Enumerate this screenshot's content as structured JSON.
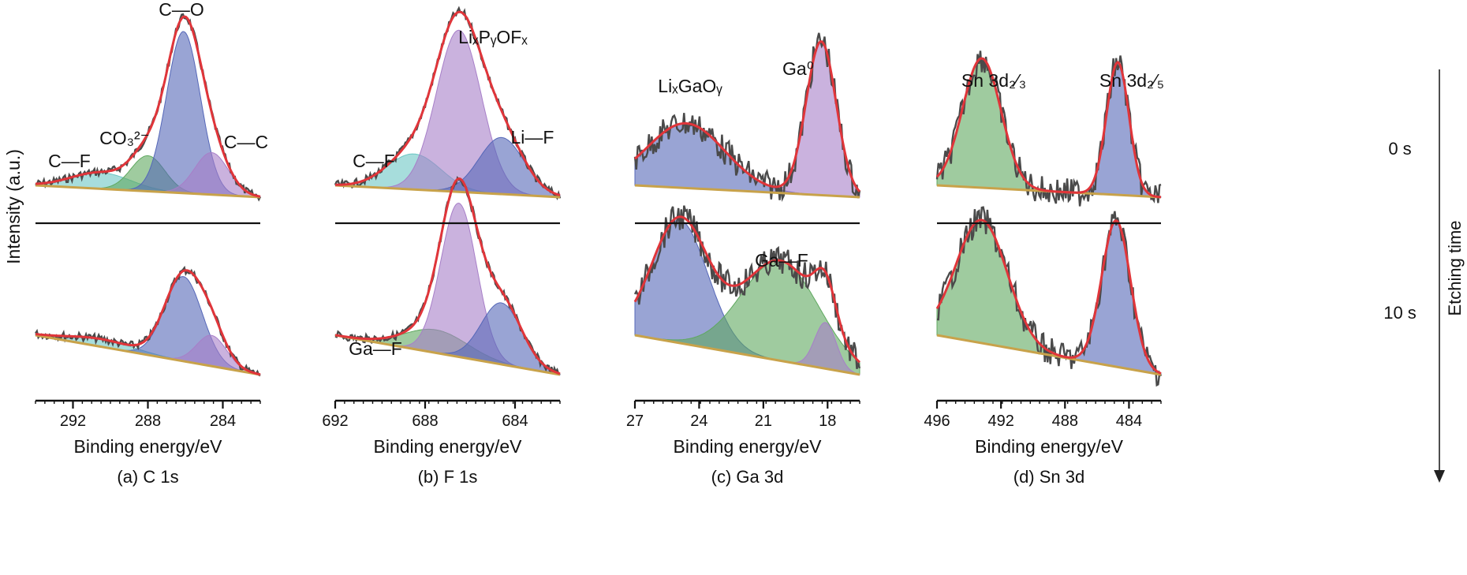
{
  "ylabel": "Intensity (a.u.)",
  "etching_label": "Etching time",
  "colors": {
    "envelope": "#e0353a",
    "raw": "#4a4a4a",
    "background": "#c8a24a",
    "blue": "#5567b8",
    "purple": "#a77fc8",
    "green": "#5fa85f",
    "cyan": "#6cc7c4",
    "separator": "#111111"
  },
  "chart_data": [
    {
      "type": "line",
      "panel": "a",
      "caption": "(a) C 1s",
      "xlabel": "Binding energy/eV",
      "xlim": [
        294,
        282
      ],
      "xticks": [
        "292",
        "288",
        "284"
      ],
      "rows": [
        {
          "time": "0 s",
          "peaks": [
            {
              "label": "C—F",
              "center": 290.5,
              "height": 0.1,
              "width": 1.6,
              "color": "cyan"
            },
            {
              "label": "CO₃²⁻",
              "center": 288.0,
              "height": 0.22,
              "width": 0.9,
              "color": "green"
            },
            {
              "label": "C—O",
              "center": 286.1,
              "height": 1.0,
              "width": 0.9,
              "color": "blue"
            },
            {
              "label": "C—C",
              "center": 284.6,
              "height": 0.26,
              "width": 0.9,
              "color": "purple"
            }
          ]
        },
        {
          "time": "10 s",
          "peaks": [
            {
              "label": "",
              "center": 290.5,
              "height": 0.05,
              "width": 1.8,
              "color": "cyan"
            },
            {
              "label": "",
              "center": 286.1,
              "height": 0.55,
              "width": 1.0,
              "color": "blue"
            },
            {
              "label": "",
              "center": 284.6,
              "height": 0.2,
              "width": 0.8,
              "color": "purple"
            }
          ]
        }
      ]
    },
    {
      "type": "line",
      "panel": "b",
      "caption": "(b) F 1s",
      "xlabel": "Binding energy/eV",
      "xlim": [
        692,
        682
      ],
      "xticks": [
        "692",
        "688",
        "684"
      ],
      "rows": [
        {
          "time": "0 s",
          "peaks": [
            {
              "label": "C—F",
              "center": 688.5,
              "height": 0.22,
              "width": 1.2,
              "color": "cyan"
            },
            {
              "label": "LiₓPᵧOFₓ",
              "center": 686.5,
              "height": 1.0,
              "width": 1.0,
              "color": "purple"
            },
            {
              "label": "Li—F",
              "center": 684.6,
              "height": 0.35,
              "width": 1.0,
              "color": "blue"
            }
          ]
        },
        {
          "time": "10 s",
          "peaks": [
            {
              "label": "Ga—F",
              "center": 687.5,
              "height": 0.15,
              "width": 1.4,
              "color": "green"
            },
            {
              "label": "",
              "center": 686.5,
              "height": 1.0,
              "width": 0.8,
              "color": "purple"
            },
            {
              "label": "",
              "center": 684.6,
              "height": 0.4,
              "width": 0.9,
              "color": "blue"
            }
          ]
        }
      ]
    },
    {
      "type": "line",
      "panel": "c",
      "caption": "(c) Ga 3d",
      "xlabel": "Binding energy/eV",
      "xlim": [
        27,
        16.5
      ],
      "xticks": [
        "27",
        "24",
        "21",
        "18"
      ],
      "rows": [
        {
          "time": "0 s",
          "peaks": [
            {
              "label": "LiₓGaOᵧ",
              "center": 24.6,
              "height": 0.4,
              "width": 1.8,
              "color": "blue"
            },
            {
              "label": "Ga⁰",
              "center": 18.3,
              "height": 0.95,
              "width": 0.7,
              "color": "purple"
            }
          ]
        },
        {
          "time": "10 s",
          "peaks": [
            {
              "label": "",
              "center": 24.9,
              "height": 0.8,
              "width": 1.3,
              "color": "blue"
            },
            {
              "label": "Ga—F",
              "center": 20.2,
              "height": 0.65,
              "width": 1.8,
              "color": "green"
            },
            {
              "label": "",
              "center": 18.1,
              "height": 0.3,
              "width": 0.5,
              "color": "purple"
            }
          ]
        }
      ]
    },
    {
      "type": "line",
      "panel": "d",
      "caption": "(d) Sn 3d",
      "xlabel": "Binding energy/eV",
      "xlim": [
        496,
        482
      ],
      "xticks": [
        "496",
        "492",
        "488",
        "484"
      ],
      "rows": [
        {
          "time": "0 s",
          "peaks": [
            {
              "label": "Sn 3d₂⁄₃",
              "center": 493.2,
              "height": 0.8,
              "width": 1.2,
              "color": "green"
            },
            {
              "label": "Sn 3d₂⁄₅",
              "center": 484.7,
              "height": 0.82,
              "width": 0.7,
              "color": "blue"
            }
          ]
        },
        {
          "time": "10 s",
          "peaks": [
            {
              "label": "",
              "center": 493.2,
              "height": 0.8,
              "width": 1.6,
              "color": "green"
            },
            {
              "label": "",
              "center": 484.8,
              "height": 0.95,
              "width": 0.9,
              "color": "blue"
            }
          ]
        }
      ]
    }
  ]
}
